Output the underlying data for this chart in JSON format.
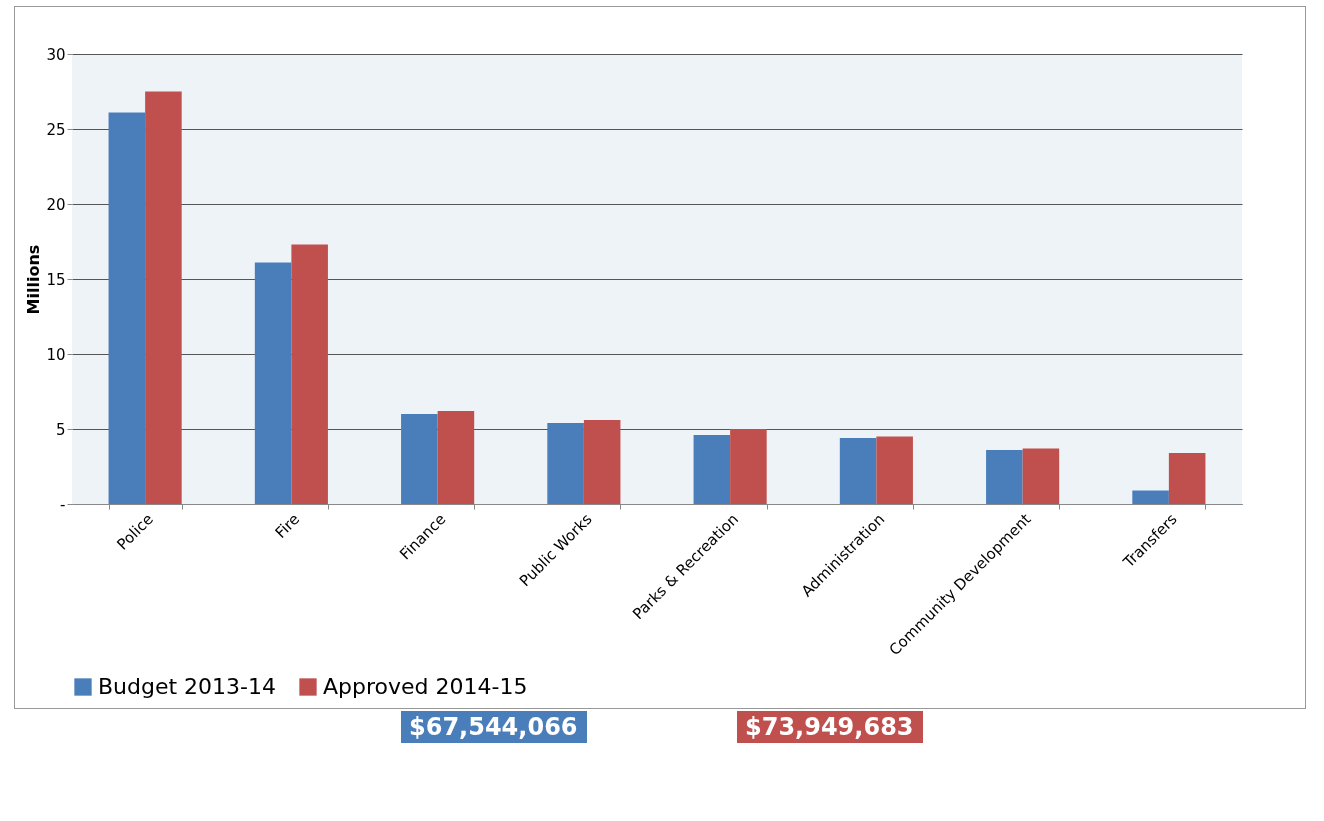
{
  "chart_data": {
    "type": "bar",
    "ylabel": "Millions",
    "categories": [
      "Police",
      "Fire",
      "Finance",
      "Public Works",
      "Parks & Recreation",
      "Administration",
      "Community Development",
      "Transfers"
    ],
    "series": [
      {
        "name": "Budget 2013-14",
        "color": "#4a7ebb",
        "values": [
          26.1,
          16.1,
          6.0,
          5.4,
          4.6,
          4.4,
          3.6,
          0.9
        ]
      },
      {
        "name": "Approved 2014-15",
        "color": "#c0504d",
        "values": [
          27.5,
          17.3,
          6.2,
          5.6,
          5.0,
          4.5,
          3.7,
          3.4
        ]
      }
    ],
    "ylim": [
      0,
      30
    ],
    "yticks": [
      {
        "value": 0,
        "label": "-"
      },
      5,
      10,
      15,
      20,
      25,
      30
    ],
    "grid": "y",
    "legend": "bottom",
    "annotations": [
      "$67,544,066",
      "$73,949,683"
    ]
  }
}
